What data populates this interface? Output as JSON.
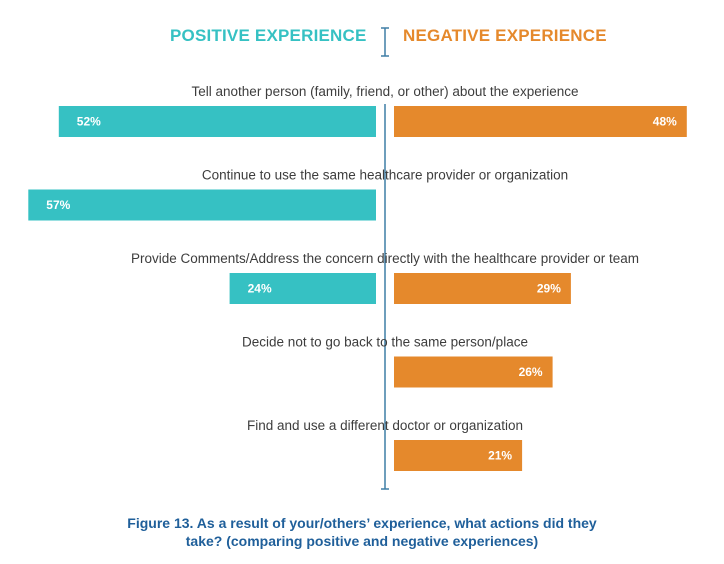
{
  "legend": {
    "positive_label": "POSITIVE EXPERIENCE",
    "negative_label": "NEGATIVE EXPERIENCE",
    "positive_color": "#36c1c3",
    "negative_color": "#e5892c"
  },
  "caption": {
    "line1": "Figure 13. As a result of your/others’ experience, what actions did they",
    "line2": "take? (comparing positive and negative experiences)"
  },
  "chart_data": {
    "type": "bar",
    "orientation": "horizontal-diverging",
    "categories": [
      "Tell another person (family, friend, or other) about the experience",
      "Continue to use the same healthcare provider or organization",
      "Provide Comments/Address the concern directly with the healthcare provider or team",
      "Decide not to go back to the same person/place",
      "Find and use a different doctor or organization"
    ],
    "series": [
      {
        "name": "POSITIVE EXPERIENCE",
        "values": [
          52,
          57,
          24,
          null,
          null
        ],
        "labels": [
          "52%",
          "57%",
          "24%",
          "",
          ""
        ],
        "color": "#36c1c3"
      },
      {
        "name": "NEGATIVE EXPERIENCE",
        "values": [
          48,
          null,
          29,
          26,
          21
        ],
        "labels": [
          "48%",
          "",
          "29%",
          "26%",
          "21%"
        ],
        "color": "#e5892c"
      }
    ],
    "unit": "%",
    "legend_position": "top",
    "grid": false
  }
}
